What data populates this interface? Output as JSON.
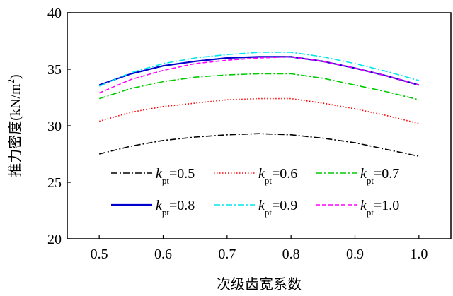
{
  "chart_data": {
    "type": "line",
    "title": "",
    "xlabel": "次级齿宽系数",
    "ylabel_main": "推力密度(kN/m",
    "ylabel_sup": "2",
    "ylabel_close": ")",
    "xlim": [
      0.45,
      1.05
    ],
    "ylim": [
      20,
      40
    ],
    "xticks": [
      "0.5",
      "0.6",
      "0.7",
      "0.8",
      "0.9",
      "1.0"
    ],
    "yticks": [
      "20",
      "25",
      "30",
      "35",
      "40"
    ],
    "legend_prefix": "k",
    "legend_sub": "pt",
    "series": [
      {
        "name": "=0.5",
        "color": "#000000",
        "dash": "dashdot",
        "x": [
          0.5,
          0.55,
          0.6,
          0.65,
          0.7,
          0.75,
          0.8,
          0.85,
          0.9,
          0.95,
          1.0
        ],
        "y": [
          27.5,
          28.2,
          28.7,
          29.0,
          29.2,
          29.3,
          29.2,
          28.9,
          28.5,
          27.9,
          27.3
        ]
      },
      {
        "name": "=0.6",
        "color": "#ff0000",
        "dash": "dotted",
        "x": [
          0.5,
          0.55,
          0.6,
          0.65,
          0.7,
          0.75,
          0.8,
          0.85,
          0.9,
          0.95,
          1.0
        ],
        "y": [
          30.4,
          31.2,
          31.7,
          32.0,
          32.3,
          32.4,
          32.4,
          32.0,
          31.5,
          30.9,
          30.2
        ]
      },
      {
        "name": "=0.7",
        "color": "#00cc00",
        "dash": "dashdot",
        "x": [
          0.5,
          0.55,
          0.6,
          0.65,
          0.7,
          0.75,
          0.8,
          0.85,
          0.9,
          0.95,
          1.0
        ],
        "y": [
          32.4,
          33.3,
          33.9,
          34.3,
          34.5,
          34.6,
          34.6,
          34.2,
          33.6,
          33.0,
          32.3
        ]
      },
      {
        "name": "=0.8",
        "color": "#0000cc",
        "dash": "solid",
        "x": [
          0.5,
          0.55,
          0.6,
          0.65,
          0.7,
          0.75,
          0.8,
          0.85,
          0.9,
          0.95,
          1.0
        ],
        "y": [
          33.6,
          34.6,
          35.3,
          35.7,
          36.0,
          36.1,
          36.1,
          35.7,
          35.1,
          34.4,
          33.6
        ]
      },
      {
        "name": "=0.9",
        "color": "#00e5ee",
        "dash": "dashdot",
        "x": [
          0.5,
          0.55,
          0.6,
          0.65,
          0.7,
          0.75,
          0.8,
          0.85,
          0.9,
          0.95,
          1.0
        ],
        "y": [
          33.5,
          34.7,
          35.5,
          36.0,
          36.3,
          36.5,
          36.5,
          36.1,
          35.5,
          34.8,
          34.0
        ]
      },
      {
        "name": "=1.0",
        "color": "#ff00ff",
        "dash": "dashed",
        "x": [
          0.5,
          0.55,
          0.6,
          0.65,
          0.7,
          0.75,
          0.8,
          0.85,
          0.9,
          0.95,
          1.0
        ],
        "y": [
          32.9,
          34.1,
          34.9,
          35.5,
          35.8,
          36.0,
          36.1,
          35.7,
          35.1,
          34.4,
          33.6
        ]
      }
    ]
  }
}
